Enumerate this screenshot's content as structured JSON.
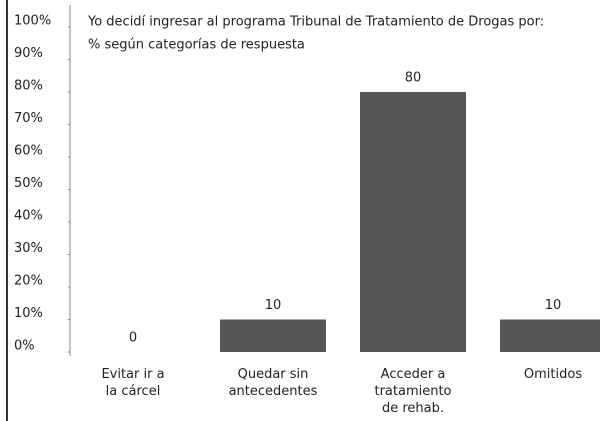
{
  "chart_data": {
    "type": "bar",
    "title": "Yo decidí ingresar al programa Tribunal de Tratamiento de Drogas por:",
    "subtitle": "% según categorías de respuesta",
    "categories": [
      "Evitar ir a\nla cárcel",
      "Quedar sin\nantecedentes",
      "Acceder a\ntratamiento\nde rehab.",
      "Omitidos"
    ],
    "values": [
      0,
      10,
      80,
      10
    ],
    "color": "#555555",
    "ylim": [
      0,
      100
    ],
    "yticks": [
      {
        "value": 0,
        "label": "0%"
      },
      {
        "value": 10,
        "label": "10%"
      },
      {
        "value": 20,
        "label": "20%"
      },
      {
        "value": 30,
        "label": "30%"
      },
      {
        "value": 40,
        "label": "40%"
      },
      {
        "value": 50,
        "label": "50%"
      },
      {
        "value": 60,
        "label": "60%"
      },
      {
        "value": 70,
        "label": "70%"
      },
      {
        "value": 80,
        "label": "80%"
      },
      {
        "value": 90,
        "label": "90%"
      },
      {
        "value": 100,
        "label": "100%"
      }
    ],
    "grid": false
  }
}
